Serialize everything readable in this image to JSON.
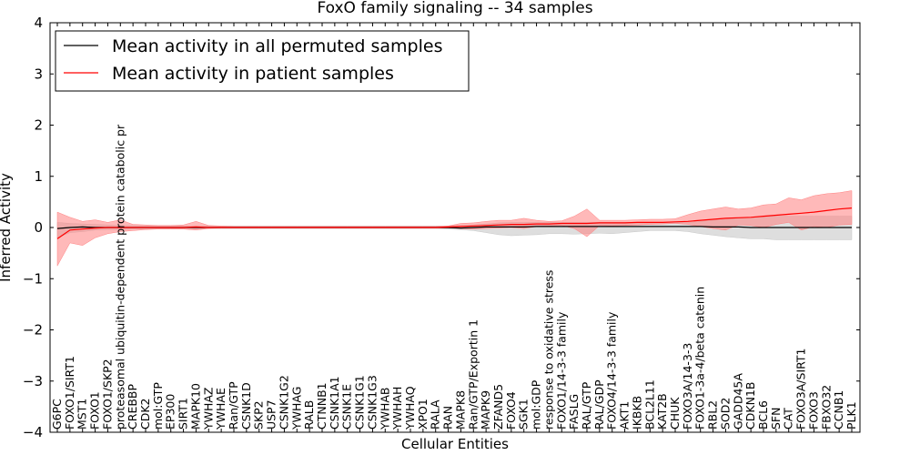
{
  "chart_data": {
    "type": "line",
    "title": "FoxO family signaling -- 34 samples",
    "xlabel": "Cellular Entities",
    "ylabel": "Inferred Activity",
    "ylim": [
      -4,
      4
    ],
    "yticks": [
      "4",
      "3",
      "2",
      "1",
      "0",
      "−1",
      "−2",
      "−3",
      "−4"
    ],
    "legend_position": "top-left",
    "categories": [
      "G6PC",
      "FOXO1/SIRT1",
      "MST1",
      "FOXO1",
      "FOXO1/SKP2",
      "proteasomal ubiquitin-dependent protein catabolic pr",
      "CREBBP",
      "CDK2",
      "mol:GTP",
      "EP300",
      "SIRT1",
      "MAPK10",
      "YWHAZ",
      "YWHAE",
      "Ran/GTP",
      "CSNK1D",
      "SKP2",
      "USP7",
      "CSNK1G2",
      "YWHAG",
      "RALB",
      "CTNNB1",
      "CSNK1A1",
      "CSNK1E",
      "CSNK1G1",
      "CSNK1G3",
      "YWHAB",
      "YWHAH",
      "YWHAQ",
      "XPO1",
      "RALA",
      "RAN",
      "MAPK8",
      "Ran/GTP/Exportin 1",
      "MAPK9",
      "ZFAND5",
      "FOXO4",
      "SGK1",
      "mol:GDP",
      "response to oxidative stress",
      "FOXO1/14-3-3 family",
      "FASLG",
      "RAL/GTP",
      "RAL/GDP",
      "FOXO4/14-3-3 family",
      "AKT1",
      "IKBKB",
      "BCL2L11",
      "KAT2B",
      "CHUK",
      "FOXO3A/14-3-3",
      "FOXO1-3a-4/beta catenin",
      "RBL2",
      "SOD2",
      "GADD45A",
      "CDKN1B",
      "BCL6",
      "SFN",
      "CAT",
      "FOXO3A/SIRT1",
      "FOXO3",
      "FBXO32",
      "CCNB1",
      "PLK1"
    ],
    "series": [
      {
        "name": "Mean activity in all permuted samples",
        "color": "#000000",
        "band_color": "#c8c8c8",
        "values": [
          -0.02,
          0,
          0.01,
          0,
          0,
          0,
          0,
          0,
          0,
          0,
          0,
          0,
          0,
          0,
          0,
          0,
          0,
          0,
          0,
          0,
          0,
          0,
          0,
          0,
          0,
          0,
          0,
          0,
          0,
          0,
          0,
          0,
          -0.01,
          0,
          0.01,
          0.01,
          0.01,
          0.01,
          0.02,
          0.02,
          0.02,
          0.02,
          0.02,
          0.02,
          0.02,
          0.02,
          0.02,
          0.02,
          0.02,
          0.02,
          0.02,
          0.02,
          0.01,
          0.01,
          0.01,
          0,
          0,
          0,
          0,
          0,
          0,
          0,
          0,
          0
        ],
        "lower": [
          -0.2,
          -0.1,
          -0.08,
          -0.05,
          -0.04,
          -0.04,
          -0.03,
          -0.03,
          -0.03,
          -0.02,
          -0.02,
          -0.02,
          -0.02,
          -0.02,
          -0.02,
          -0.02,
          -0.02,
          -0.02,
          -0.02,
          -0.02,
          -0.02,
          -0.02,
          -0.02,
          -0.02,
          -0.02,
          -0.02,
          -0.02,
          -0.02,
          -0.02,
          -0.02,
          -0.02,
          -0.03,
          -0.04,
          -0.06,
          -0.1,
          -0.14,
          -0.16,
          -0.15,
          -0.14,
          -0.12,
          -0.12,
          -0.13,
          -0.12,
          -0.11,
          -0.12,
          -0.1,
          -0.08,
          -0.06,
          -0.06,
          -0.06,
          -0.08,
          -0.12,
          -0.15,
          -0.18,
          -0.2,
          -0.22,
          -0.22,
          -0.24,
          -0.24,
          -0.24,
          -0.24,
          -0.24,
          -0.24,
          -0.24
        ],
        "upper": [
          0.1,
          0.08,
          0.07,
          0.06,
          0.05,
          0.04,
          0.04,
          0.03,
          0.03,
          0.03,
          0.03,
          0.03,
          0.03,
          0.03,
          0.03,
          0.03,
          0.03,
          0.03,
          0.03,
          0.03,
          0.03,
          0.03,
          0.03,
          0.03,
          0.03,
          0.03,
          0.03,
          0.03,
          0.03,
          0.03,
          0.03,
          0.03,
          0.04,
          0.05,
          0.07,
          0.09,
          0.1,
          0.1,
          0.1,
          0.1,
          0.1,
          0.1,
          0.1,
          0.1,
          0.1,
          0.1,
          0.1,
          0.1,
          0.1,
          0.1,
          0.1,
          0.12,
          0.14,
          0.16,
          0.18,
          0.2,
          0.21,
          0.22,
          0.22,
          0.22,
          0.22,
          0.22,
          0.22,
          0.22
        ]
      },
      {
        "name": "Mean activity in patient samples",
        "color": "#ff0000",
        "band_color": "#ff8080",
        "values": [
          -0.22,
          -0.05,
          -0.03,
          -0.01,
          0,
          0,
          0,
          0,
          0,
          0,
          0,
          0.01,
          0,
          0,
          0,
          0,
          0,
          0,
          0,
          0,
          0,
          0,
          0,
          0,
          0,
          0,
          0,
          0,
          0,
          0,
          0,
          0.01,
          0.02,
          0.03,
          0.04,
          0.05,
          0.06,
          0.06,
          0.07,
          0.07,
          0.08,
          0.08,
          0.08,
          0.09,
          0.09,
          0.09,
          0.1,
          0.1,
          0.1,
          0.11,
          0.12,
          0.14,
          0.16,
          0.18,
          0.19,
          0.2,
          0.22,
          0.24,
          0.26,
          0.28,
          0.3,
          0.33,
          0.36,
          0.38
        ],
        "lower": [
          -0.75,
          -0.3,
          -0.35,
          -0.2,
          -0.12,
          -0.08,
          -0.06,
          -0.04,
          -0.03,
          -0.03,
          -0.03,
          -0.05,
          -0.02,
          -0.01,
          -0.01,
          -0.01,
          -0.01,
          -0.01,
          -0.01,
          -0.01,
          -0.01,
          -0.01,
          -0.01,
          -0.01,
          -0.01,
          -0.01,
          -0.01,
          -0.01,
          -0.01,
          -0.01,
          -0.01,
          -0.01,
          -0.02,
          -0.03,
          -0.02,
          -0.01,
          0,
          -0.02,
          0.02,
          0.03,
          0.04,
          -0.02,
          -0.18,
          0.04,
          0.03,
          0.04,
          0.05,
          0.06,
          0.07,
          0.08,
          0.06,
          0.02,
          -0.02,
          -0.05,
          0.05,
          0.04,
          0,
          0.06,
          0.1,
          -0.05,
          0.02,
          0,
          0.05,
          0.06
        ],
        "upper": [
          0.3,
          0.2,
          0.12,
          0.15,
          0.1,
          0.15,
          0.06,
          0.05,
          0.04,
          0.04,
          0.05,
          0.12,
          0.04,
          0.03,
          0.02,
          0.02,
          0.02,
          0.02,
          0.02,
          0.02,
          0.02,
          0.02,
          0.02,
          0.02,
          0.02,
          0.02,
          0.02,
          0.02,
          0.02,
          0.02,
          0.02,
          0.03,
          0.08,
          0.09,
          0.12,
          0.14,
          0.14,
          0.18,
          0.14,
          0.12,
          0.13,
          0.22,
          0.36,
          0.14,
          0.14,
          0.14,
          0.15,
          0.16,
          0.16,
          0.17,
          0.25,
          0.32,
          0.36,
          0.4,
          0.36,
          0.38,
          0.44,
          0.46,
          0.58,
          0.54,
          0.62,
          0.66,
          0.68,
          0.72
        ]
      }
    ]
  }
}
